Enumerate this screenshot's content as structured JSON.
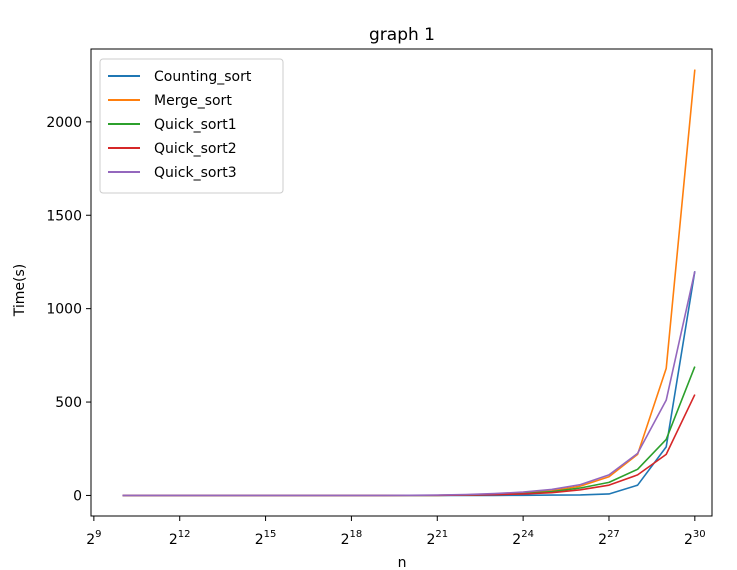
{
  "chart_data": {
    "type": "line",
    "title": "graph 1",
    "xlabel": "n",
    "ylabel": "Time(s)",
    "x_scale": "log2",
    "x": [
      1024,
      2048,
      4096,
      8192,
      16384,
      32768,
      65536,
      131072,
      262144,
      524288,
      1048576,
      2097152,
      4194304,
      8388608,
      16777216,
      33554432,
      67108864,
      134217728,
      268435456,
      536870912,
      1073741824
    ],
    "xticks": [
      {
        "exp": 9,
        "base": "2",
        "power": "9"
      },
      {
        "exp": 12,
        "base": "2",
        "power": "12"
      },
      {
        "exp": 15,
        "base": "2",
        "power": "15"
      },
      {
        "exp": 18,
        "base": "2",
        "power": "18"
      },
      {
        "exp": 21,
        "base": "2",
        "power": "21"
      },
      {
        "exp": 24,
        "base": "2",
        "power": "24"
      },
      {
        "exp": 27,
        "base": "2",
        "power": "27"
      },
      {
        "exp": 30,
        "base": "2",
        "power": "30"
      }
    ],
    "xlim_exp": [
      8.9,
      30.6
    ],
    "ylim": [
      -110,
      2390
    ],
    "yticks": [
      0,
      500,
      1000,
      1500,
      2000
    ],
    "grid": false,
    "legend_position": "upper-left",
    "series": [
      {
        "name": "Counting_sort",
        "color": "#1f77b4",
        "values": [
          0,
          0,
          0,
          0,
          0,
          0,
          0,
          0,
          0,
          0,
          0,
          0,
          0,
          0,
          1,
          2,
          3,
          8,
          55,
          260,
          1200
        ]
      },
      {
        "name": "Merge_sort",
        "color": "#ff7f0e",
        "values": [
          0,
          0,
          0,
          0,
          0,
          0,
          0,
          0,
          0,
          0,
          0.5,
          1,
          3,
          6,
          12,
          25,
          50,
          100,
          220,
          680,
          2280
        ]
      },
      {
        "name": "Quick_sort1",
        "color": "#2ca02c",
        "values": [
          0,
          0,
          0,
          0,
          0,
          0,
          0,
          0,
          0,
          0,
          0.5,
          1,
          2,
          5,
          10,
          20,
          40,
          70,
          140,
          300,
          690
        ]
      },
      {
        "name": "Quick_sort2",
        "color": "#d62728",
        "values": [
          0,
          0,
          0,
          0,
          0,
          0,
          0,
          0,
          0,
          0,
          0.5,
          1,
          2,
          4,
          8,
          15,
          30,
          55,
          110,
          220,
          540
        ]
      },
      {
        "name": "Quick_sort3",
        "color": "#9467bd",
        "values": [
          0,
          0,
          0,
          0,
          0,
          0,
          0,
          0,
          0,
          0,
          1,
          2,
          5,
          10,
          18,
          32,
          58,
          110,
          225,
          510,
          1200
        ]
      }
    ]
  }
}
